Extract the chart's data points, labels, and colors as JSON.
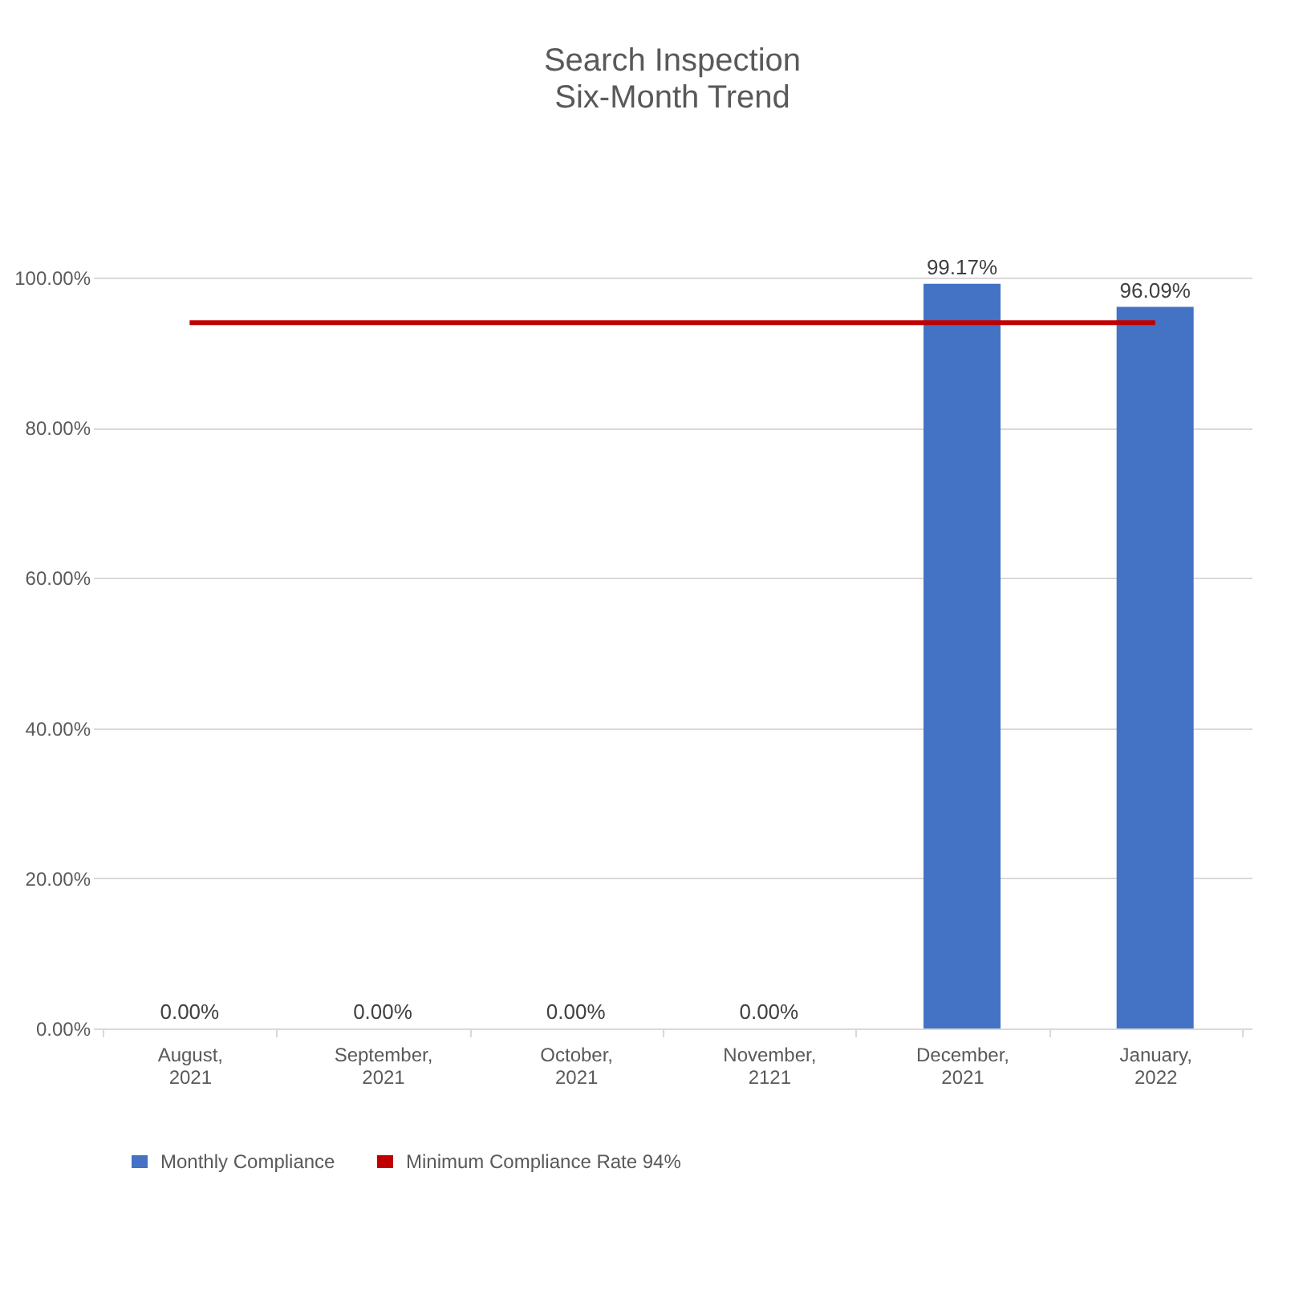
{
  "chart_data": {
    "type": "bar",
    "title": "Search Inspection",
    "subtitle": "Six-Month Trend",
    "categories": [
      "August, 2021",
      "September, 2021",
      "October, 2021",
      "November, 2121",
      "December, 2021",
      "January, 2022"
    ],
    "series": [
      {
        "name": "Monthly Compliance",
        "color": "#4472c4",
        "values": [
          0,
          0,
          0,
          0,
          99.17,
          96.09
        ],
        "value_labels": [
          "0.00%",
          "0.00%",
          "0.00%",
          "0.00%",
          "99.17%",
          "96.09%"
        ]
      },
      {
        "name": "Minimum Compliance Rate 94%",
        "type": "line",
        "color": "#c00000",
        "values": [
          94,
          94,
          94,
          94,
          94,
          94
        ]
      }
    ],
    "ylim": [
      0,
      100
    ],
    "yticks": [
      {
        "value": 0,
        "label": "0.00%"
      },
      {
        "value": 20,
        "label": "20.00%"
      },
      {
        "value": 40,
        "label": "40.00%"
      },
      {
        "value": 60,
        "label": "60.00%"
      },
      {
        "value": 80,
        "label": "80.00%"
      },
      {
        "value": 100,
        "label": "100.00%"
      }
    ],
    "grid": "y",
    "legend": "bottom",
    "marker": "none",
    "line_style": "solid"
  }
}
